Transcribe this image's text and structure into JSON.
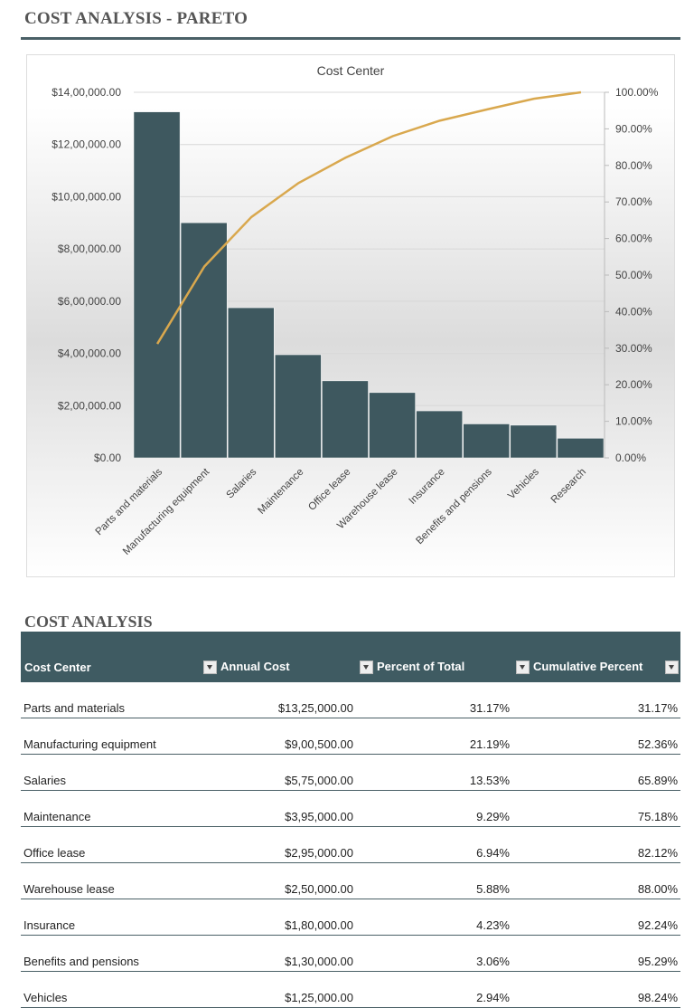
{
  "page": {
    "title": "COST ANALYSIS - PARETO",
    "table_title": "COST ANALYSIS"
  },
  "chart_data": {
    "type": "bar",
    "title": "Cost Center",
    "categories": [
      "Parts and materials",
      "Manufacturing equipment",
      "Salaries",
      "Maintenance",
      "Office lease",
      "Warehouse lease",
      "Insurance",
      "Benefits and pensions",
      "Vehicles",
      "Research"
    ],
    "series": [
      {
        "name": "Annual Cost",
        "type": "bar",
        "axis": "left",
        "values": [
          1325000,
          900500,
          575000,
          395000,
          295000,
          250000,
          180000,
          130000,
          125000,
          75000
        ]
      },
      {
        "name": "Cumulative Percent",
        "type": "line",
        "axis": "right",
        "values": [
          31.17,
          52.36,
          65.89,
          75.18,
          82.12,
          88.0,
          92.24,
          95.29,
          98.24,
          100.0
        ]
      }
    ],
    "ylim": [
      0,
      1400000
    ],
    "y2lim": [
      0,
      100
    ],
    "yticks": [
      "$0.00",
      "$2,00,000.00",
      "$4,00,000.00",
      "$6,00,000.00",
      "$8,00,000.00",
      "$10,00,000.00",
      "$12,00,000.00",
      "$14,00,000.00"
    ],
    "y2ticks": [
      "0.00%",
      "10.00%",
      "20.00%",
      "30.00%",
      "40.00%",
      "50.00%",
      "60.00%",
      "70.00%",
      "80.00%",
      "90.00%",
      "100.00%"
    ],
    "grid": true,
    "colors": {
      "bar": "#3e585f",
      "line": "#d9a84e"
    }
  },
  "table": {
    "headers": [
      "Cost Center",
      "Annual Cost",
      "Percent of Total",
      "Cumulative Percent"
    ],
    "rows": [
      [
        "Parts and materials",
        "$13,25,000.00",
        "31.17%",
        "31.17%"
      ],
      [
        "Manufacturing equipment",
        "$9,00,500.00",
        "21.19%",
        "52.36%"
      ],
      [
        "Salaries",
        "$5,75,000.00",
        "13.53%",
        "65.89%"
      ],
      [
        "Maintenance",
        "$3,95,000.00",
        "9.29%",
        "75.18%"
      ],
      [
        "Office lease",
        "$2,95,000.00",
        "6.94%",
        "82.12%"
      ],
      [
        "Warehouse lease",
        "$2,50,000.00",
        "5.88%",
        "88.00%"
      ],
      [
        "Insurance",
        "$1,80,000.00",
        "4.23%",
        "92.24%"
      ],
      [
        "Benefits and pensions",
        "$1,30,000.00",
        "3.06%",
        "95.29%"
      ],
      [
        "Vehicles",
        "$1,25,000.00",
        "2.94%",
        "98.24%"
      ]
    ]
  }
}
